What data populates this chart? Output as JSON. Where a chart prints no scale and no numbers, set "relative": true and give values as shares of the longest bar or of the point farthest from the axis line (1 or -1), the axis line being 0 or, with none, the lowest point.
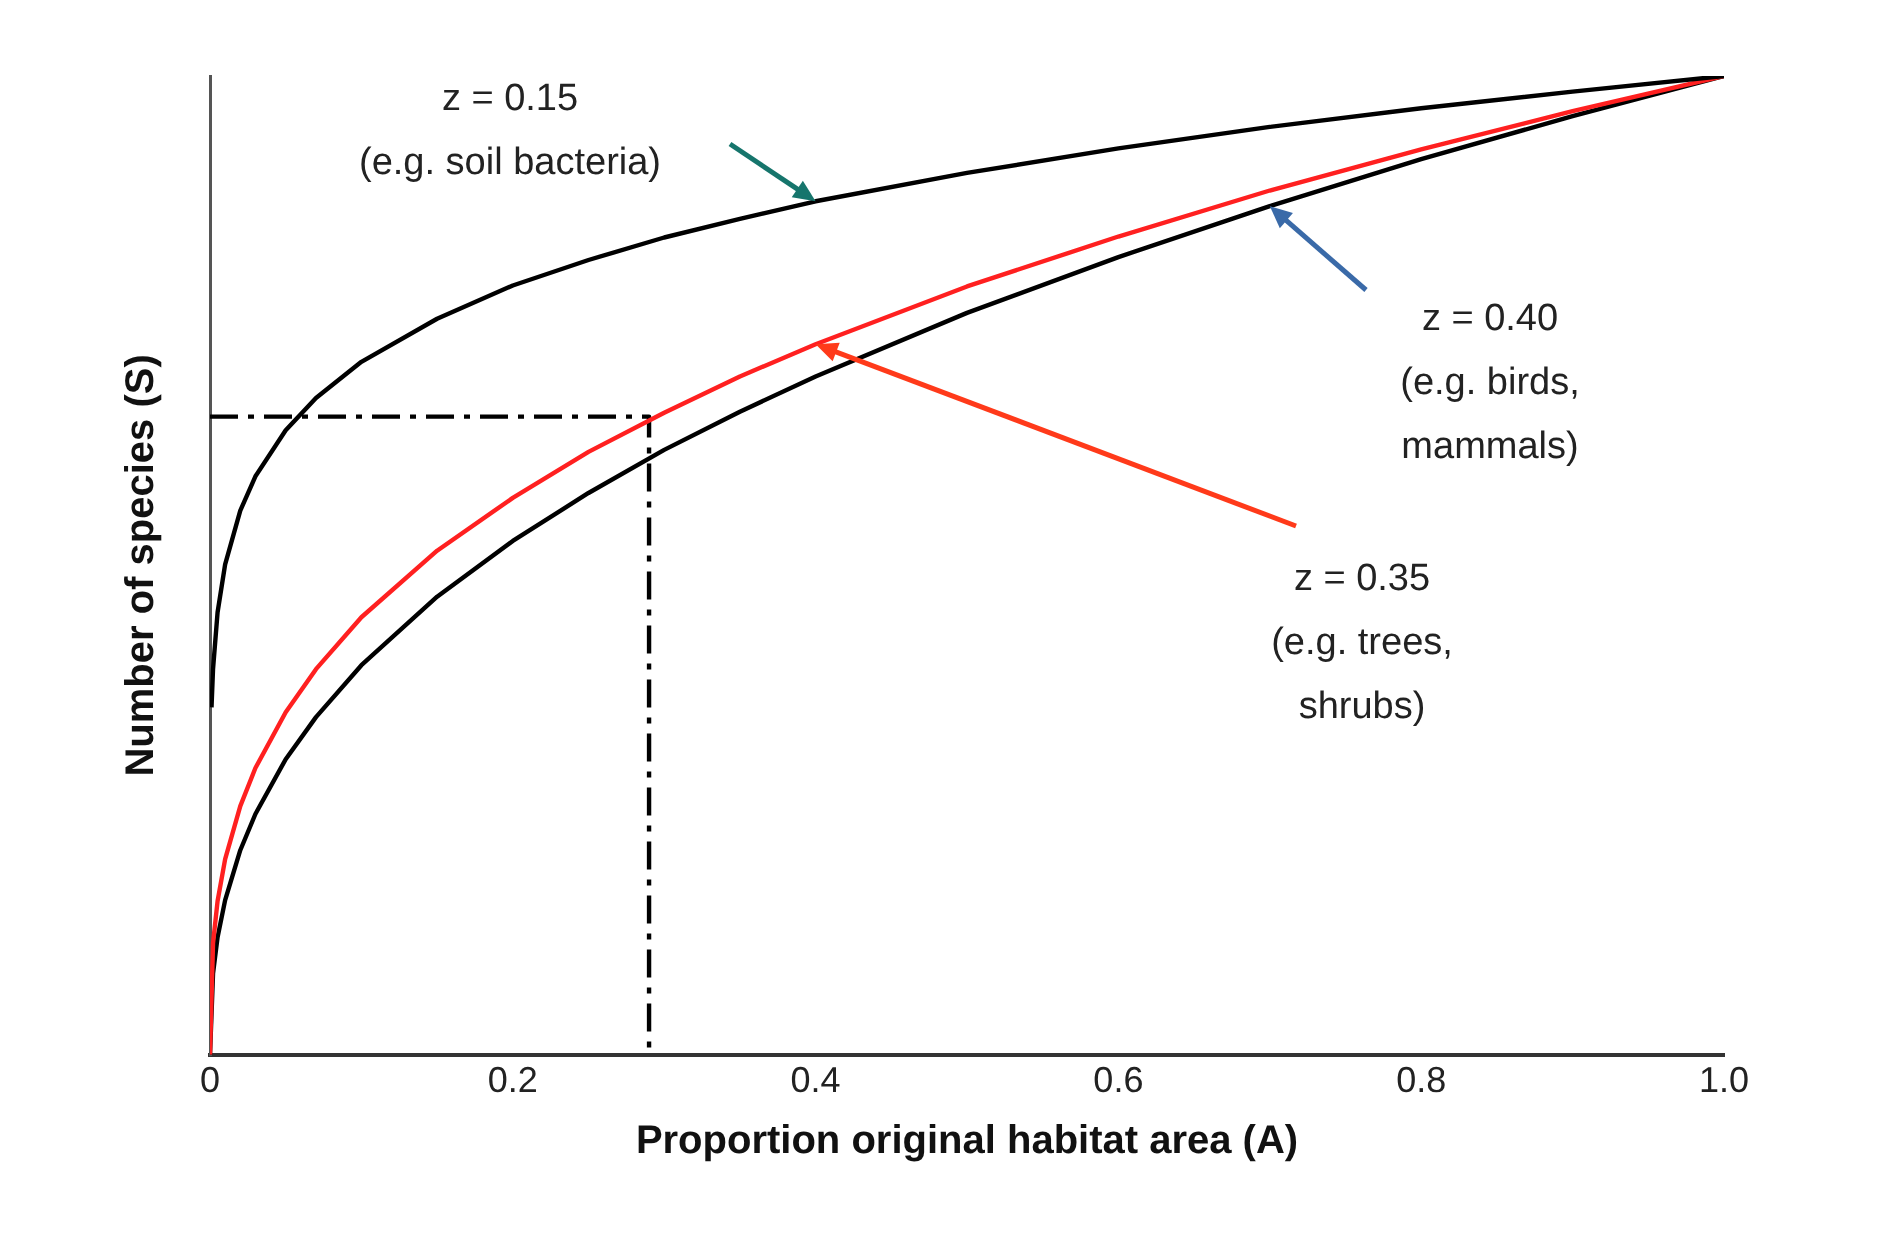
{
  "chart_data": {
    "type": "line",
    "relative": true,
    "xlabel": "Proportion original habitat area (A)",
    "ylabel": "Number of species (S)",
    "xlim": [
      0,
      1
    ],
    "xticks": [
      0,
      0.2,
      0.4,
      0.6,
      0.8,
      {
        "value": 1,
        "label": "1.0"
      }
    ],
    "x": [
      0,
      0.002,
      0.005,
      0.01,
      0.02,
      0.03,
      0.05,
      0.07,
      0.1,
      0.15,
      0.2,
      0.25,
      0.3,
      0.35,
      0.4,
      0.5,
      0.6,
      0.7,
      0.8,
      0.9,
      1
    ],
    "series": [
      {
        "color": "#000000",
        "x": [
          0.001,
          0.002,
          0.005,
          0.01,
          0.02,
          0.03,
          0.05,
          0.07,
          0.1,
          0.15,
          0.2,
          0.25,
          0.3,
          0.35,
          0.4,
          0.5,
          0.6,
          0.7,
          0.8,
          0.9,
          1
        ],
        "values": [
          0.355,
          0.394,
          0.452,
          0.501,
          0.556,
          0.591,
          0.638,
          0.671,
          0.708,
          0.752,
          0.786,
          0.812,
          0.835,
          0.854,
          0.872,
          0.901,
          0.926,
          0.948,
          0.967,
          0.984,
          1
        ]
      },
      {
        "color": "#ff2020",
        "values": [
          0,
          0.114,
          0.157,
          0.2,
          0.254,
          0.293,
          0.35,
          0.394,
          0.447,
          0.515,
          0.569,
          0.616,
          0.656,
          0.693,
          0.726,
          0.785,
          0.836,
          0.883,
          0.925,
          0.964,
          1
        ]
      },
      {
        "color": "#000000",
        "values": [
          0,
          0.083,
          0.12,
          0.158,
          0.209,
          0.246,
          0.302,
          0.345,
          0.398,
          0.468,
          0.525,
          0.574,
          0.618,
          0.657,
          0.693,
          0.758,
          0.815,
          0.867,
          0.915,
          0.959,
          1
        ]
      },
      {
        "color": "#000000",
        "line_style": "dashed",
        "x": [
          0,
          0.29,
          0.29
        ],
        "values": [
          0.652,
          0.652,
          0
        ]
      }
    ],
    "annotations": [
      "z = 0.15\n(e.g. soil bacteria)",
      "z = 0.40\n(e.g. birds,\nmammals)",
      "z = 0.35\n(e.g. trees,\nshrubs)"
    ],
    "legend": false,
    "grid": false
  }
}
